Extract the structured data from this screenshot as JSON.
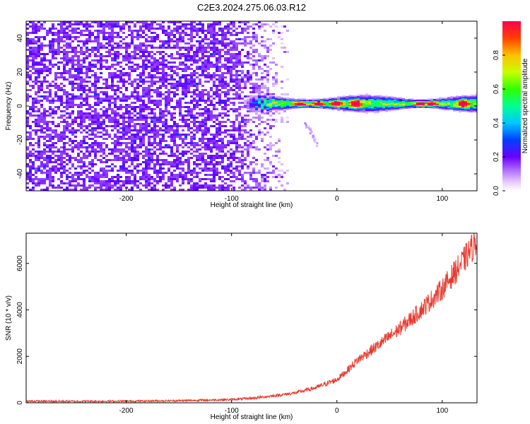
{
  "figure_title": "C2E3.2024.275.06.03.R12",
  "chart_data": [
    {
      "type": "heatmap",
      "xlabel": "Height of straight line (km)",
      "ylabel": "Frequency (Hz)",
      "xlim": [
        -295,
        133
      ],
      "ylim": [
        -50,
        50
      ],
      "x_ticks": [
        -200,
        -100,
        0,
        100
      ],
      "y_ticks": [
        -40,
        -20,
        0,
        20,
        40
      ],
      "grid": false,
      "noise_region": {
        "x_range": [
          -295,
          -45
        ],
        "y_range": [
          -50,
          50
        ],
        "amplitude": [
          0.15,
          0.25
        ]
      },
      "fade_region": {
        "x_range": [
          -100,
          -45
        ],
        "amplitude": [
          0.02,
          0.2
        ]
      },
      "scatter_tail": {
        "from": [
          -30,
          -10
        ],
        "to": [
          -20,
          -22
        ]
      },
      "signal_band": {
        "x_range": [
          -90,
          133
        ],
        "center_frequency": 0,
        "half_width_hz": [
          2,
          4
        ],
        "peak_amplitude": 0.95,
        "peaks_x": [
          -35,
          -18,
          0,
          18,
          80,
          90,
          120
        ]
      },
      "colorbar": {
        "label": "Normalized spectral amplitude",
        "range": [
          0,
          1
        ],
        "ticks": [
          0.0,
          0.2,
          0.4,
          0.6,
          0.8
        ]
      }
    },
    {
      "type": "line",
      "xlabel": "Height of straight line (km)",
      "ylabel": "SNR (10 * v/v)",
      "xlim": [
        -295,
        133
      ],
      "ylim": [
        0,
        7300
      ],
      "x_ticks": [
        -200,
        -100,
        0,
        100
      ],
      "y_ticks": [
        0,
        2000,
        4000,
        6000
      ],
      "grid": false,
      "series": [
        {
          "color": "#e8392d",
          "points": [
            [
              -295,
              70
            ],
            [
              -250,
              65
            ],
            [
              -200,
              70
            ],
            [
              -150,
              90
            ],
            [
              -100,
              140
            ],
            [
              -80,
              200
            ],
            [
              -60,
              300
            ],
            [
              -40,
              420
            ],
            [
              -20,
              650
            ],
            [
              0,
              1000
            ],
            [
              10,
              1400
            ],
            [
              20,
              1850
            ],
            [
              40,
              2500
            ],
            [
              60,
              3200
            ],
            [
              80,
              4000
            ],
            [
              100,
              4900
            ],
            [
              120,
              6100
            ],
            [
              133,
              7000
            ]
          ]
        }
      ]
    }
  ]
}
